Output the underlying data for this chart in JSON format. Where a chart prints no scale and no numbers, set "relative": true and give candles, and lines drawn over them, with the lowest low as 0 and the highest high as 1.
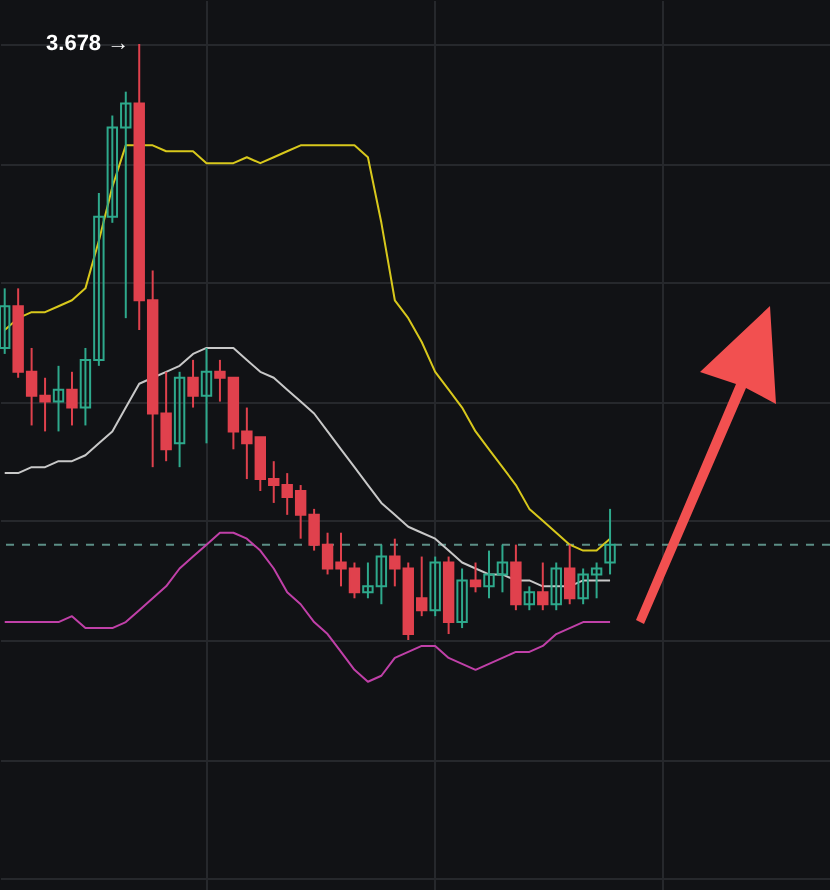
{
  "chart_data": {
    "type": "candlestick",
    "relative": true,
    "grid": true,
    "categories": [
      null,
      null,
      null,
      null,
      null,
      null,
      null,
      null,
      null,
      null,
      null,
      null,
      null,
      null,
      null,
      null,
      null,
      null,
      null,
      null,
      null,
      null,
      null,
      null,
      null,
      null,
      null,
      null,
      null,
      null,
      null,
      null,
      null,
      null,
      null,
      null,
      null,
      null,
      null,
      null,
      null,
      null,
      null,
      null,
      null,
      null,
      null,
      null,
      null,
      null,
      null,
      null,
      null,
      null,
      null,
      null,
      null,
      null,
      null,
      null,
      null,
      null
    ],
    "ohlc": [
      [
        0.49,
        0.59,
        0.48,
        0.56
      ],
      [
        0.56,
        0.59,
        0.44,
        0.45
      ],
      [
        0.45,
        0.49,
        0.36,
        0.41
      ],
      [
        0.41,
        0.44,
        0.35,
        0.4
      ],
      [
        0.4,
        0.46,
        0.35,
        0.42
      ],
      [
        0.42,
        0.45,
        0.36,
        0.39
      ],
      [
        0.39,
        0.49,
        0.36,
        0.47
      ],
      [
        0.47,
        0.75,
        0.46,
        0.71
      ],
      [
        0.71,
        0.88,
        0.7,
        0.86
      ],
      [
        0.86,
        0.92,
        0.54,
        0.9
      ],
      [
        0.9,
        1.0,
        0.52,
        0.57
      ],
      [
        0.57,
        0.62,
        0.29,
        0.38
      ],
      [
        0.38,
        0.45,
        0.3,
        0.32
      ],
      [
        0.33,
        0.45,
        0.29,
        0.44
      ],
      [
        0.44,
        0.47,
        0.39,
        0.41
      ],
      [
        0.41,
        0.49,
        0.33,
        0.45
      ],
      [
        0.45,
        0.47,
        0.4,
        0.44
      ],
      [
        0.44,
        0.44,
        0.32,
        0.35
      ],
      [
        0.35,
        0.39,
        0.27,
        0.33
      ],
      [
        0.34,
        0.34,
        0.25,
        0.27
      ],
      [
        0.27,
        0.3,
        0.23,
        0.26
      ],
      [
        0.26,
        0.28,
        0.21,
        0.24
      ],
      [
        0.25,
        0.26,
        0.17,
        0.21
      ],
      [
        0.21,
        0.22,
        0.15,
        0.16
      ],
      [
        0.16,
        0.18,
        0.11,
        0.12
      ],
      [
        0.13,
        0.18,
        0.09,
        0.12
      ],
      [
        0.12,
        0.13,
        0.07,
        0.08
      ],
      [
        0.08,
        0.13,
        0.07,
        0.09
      ],
      [
        0.09,
        0.16,
        0.06,
        0.14
      ],
      [
        0.14,
        0.17,
        0.09,
        0.12
      ],
      [
        0.12,
        0.13,
        0.0,
        0.01
      ],
      [
        0.07,
        0.14,
        0.04,
        0.05
      ],
      [
        0.05,
        0.14,
        0.04,
        0.13
      ],
      [
        0.13,
        0.14,
        0.01,
        0.03
      ],
      [
        0.03,
        0.12,
        0.02,
        0.1
      ],
      [
        0.1,
        0.13,
        0.08,
        0.09
      ],
      [
        0.09,
        0.15,
        0.07,
        0.11
      ],
      [
        0.11,
        0.16,
        0.08,
        0.13
      ],
      [
        0.13,
        0.16,
        0.05,
        0.06
      ],
      [
        0.06,
        0.09,
        0.05,
        0.08
      ],
      [
        0.08,
        0.13,
        0.05,
        0.06
      ],
      [
        0.06,
        0.13,
        0.05,
        0.12
      ],
      [
        0.12,
        0.16,
        0.06,
        0.07
      ],
      [
        0.07,
        0.12,
        0.06,
        0.11
      ],
      [
        0.11,
        0.13,
        0.07,
        0.12
      ],
      [
        0.13,
        0.22,
        0.11,
        0.16
      ],
      null,
      null,
      null,
      null,
      null,
      null,
      null,
      null,
      null,
      null,
      null,
      null,
      null,
      null,
      null,
      null
    ],
    "colors": [
      "#2ea98c",
      "#e0414d",
      "#e0414d",
      "#e0414d",
      "#2ea98c",
      "#e0414d",
      "#2ea98c",
      "#2ea98c",
      "#2ea98c",
      "#2ea98c",
      "#e0414d",
      "#e0414d",
      "#e0414d",
      "#2ea98c",
      "#e0414d",
      "#2ea98c",
      "#e0414d",
      "#e0414d",
      "#e0414d",
      "#e0414d",
      "#e0414d",
      "#e0414d",
      "#e0414d",
      "#e0414d",
      "#e0414d",
      "#e0414d",
      "#e0414d",
      "#2ea98c",
      "#2ea98c",
      "#e0414d",
      "#e0414d",
      "#e0414d",
      "#2ea98c",
      "#e0414d",
      "#2ea98c",
      "#e0414d",
      "#2ea98c",
      "#2ea98c",
      "#e0414d",
      "#2ea98c",
      "#e0414d",
      "#2ea98c",
      "#e0414d",
      "#2ea98c",
      "#2ea98c",
      "#2ea98c",
      null,
      null,
      null,
      null,
      null,
      null,
      null,
      null,
      null,
      null,
      null,
      null,
      null,
      null,
      null,
      null
    ],
    "series": [
      {
        "type": "line",
        "color": "#d8c81c",
        "values": [
          0.52,
          0.54,
          0.55,
          0.55,
          0.56,
          0.57,
          0.59,
          0.67,
          0.76,
          0.83,
          0.83,
          0.83,
          0.82,
          0.82,
          0.82,
          0.8,
          0.8,
          0.8,
          0.81,
          0.8,
          0.81,
          0.82,
          0.83,
          0.83,
          0.83,
          0.83,
          0.83,
          0.81,
          0.7,
          0.57,
          0.54,
          0.5,
          0.45,
          0.42,
          0.39,
          0.35,
          0.32,
          0.29,
          0.26,
          0.22,
          0.2,
          0.18,
          0.16,
          0.15,
          0.15,
          0.17,
          null,
          null,
          null,
          null,
          null,
          null,
          null,
          null,
          null,
          null,
          null,
          null,
          null,
          null,
          null,
          null
        ]
      },
      {
        "type": "line",
        "color": "#c8c8c8",
        "values": [
          0.28,
          0.28,
          0.29,
          0.29,
          0.3,
          0.3,
          0.31,
          0.33,
          0.35,
          0.39,
          0.43,
          0.44,
          0.45,
          0.46,
          0.48,
          0.49,
          0.49,
          0.49,
          0.47,
          0.45,
          0.44,
          0.42,
          0.4,
          0.38,
          0.35,
          0.32,
          0.29,
          0.26,
          0.23,
          0.21,
          0.19,
          0.18,
          0.17,
          0.15,
          0.13,
          0.12,
          0.11,
          0.11,
          0.1,
          0.1,
          0.09,
          0.09,
          0.09,
          0.1,
          0.1,
          0.1,
          null,
          null,
          null,
          null,
          null,
          null,
          null,
          null,
          null,
          null,
          null,
          null,
          null,
          null,
          null,
          null
        ]
      },
      {
        "type": "line",
        "color": "#c040a8",
        "values": [
          0.03,
          0.03,
          0.03,
          0.03,
          0.03,
          0.04,
          0.02,
          0.02,
          0.02,
          0.03,
          0.05,
          0.07,
          0.09,
          0.12,
          0.14,
          0.16,
          0.18,
          0.18,
          0.17,
          0.15,
          0.12,
          0.08,
          0.06,
          0.03,
          0.01,
          -0.02,
          -0.05,
          -0.07,
          -0.06,
          -0.03,
          -0.02,
          -0.01,
          -0.01,
          -0.03,
          -0.04,
          -0.05,
          -0.04,
          -0.03,
          -0.02,
          -0.02,
          -0.01,
          0.01,
          0.02,
          0.03,
          0.03,
          0.03,
          null,
          null,
          null,
          null,
          null,
          null,
          null,
          null,
          null,
          null,
          null,
          null,
          null,
          null,
          null,
          null
        ]
      }
    ],
    "ref_lines": [
      {
        "axis": "y",
        "value": 0.16,
        "color": "#5c8f86",
        "line_style": "dashed"
      }
    ],
    "annotations": [
      "3.678 →"
    ]
  }
}
